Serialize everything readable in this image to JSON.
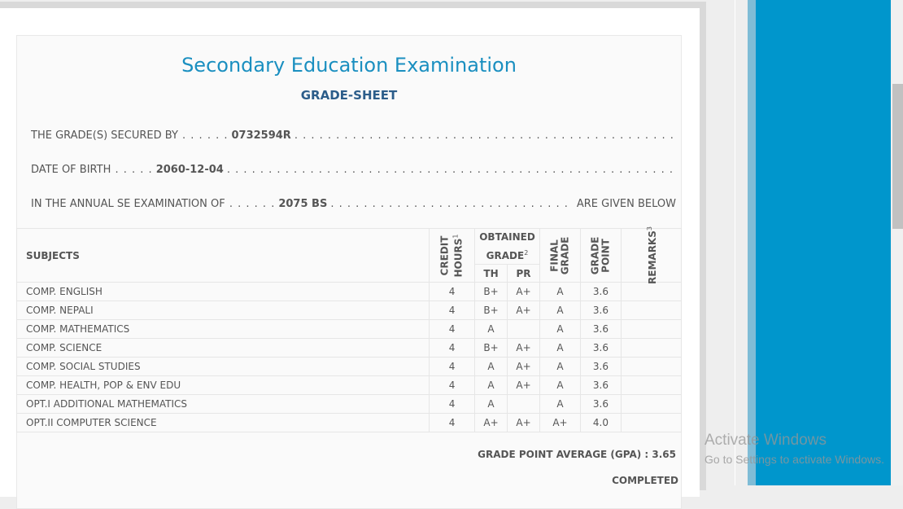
{
  "sheet": {
    "title": "Secondary Education Examination",
    "subtitle": "GRADE-SHEET",
    "secured_by_label": "THE GRADE(S) SECURED BY",
    "symbol_no": "0732594R",
    "dob_label": "DATE OF BIRTH",
    "dob": "2060-12-04",
    "exam_label": "IN THE ANNUAL SE EXAMINATION OF",
    "exam_year": "2075 BS",
    "given_below": "ARE GIVEN BELOW"
  },
  "table": {
    "headers": {
      "subjects": "SUBJECTS",
      "credit1": "CREDIT",
      "credit2": "HOURS",
      "credit_sup": "1",
      "obtained1": "OBTAINED",
      "obtained2": "GRADE",
      "obtained_sup": "2",
      "th": "TH",
      "pr": "PR",
      "final1": "FINAL",
      "final2": "GRADE",
      "gp1": "GRADE",
      "gp2": "POINT",
      "remarks": "REMARKS",
      "remarks_sup": "3"
    },
    "rows": [
      {
        "subject": "COMP. ENGLISH",
        "credit": "4",
        "th": "B+",
        "pr": "A+",
        "final": "A",
        "gp": "3.6",
        "remarks": ""
      },
      {
        "subject": "COMP. NEPALI",
        "credit": "4",
        "th": "B+",
        "pr": "A+",
        "final": "A",
        "gp": "3.6",
        "remarks": ""
      },
      {
        "subject": "COMP. MATHEMATICS",
        "credit": "4",
        "th": "A",
        "pr": "",
        "final": "A",
        "gp": "3.6",
        "remarks": ""
      },
      {
        "subject": "COMP. SCIENCE",
        "credit": "4",
        "th": "B+",
        "pr": "A+",
        "final": "A",
        "gp": "3.6",
        "remarks": ""
      },
      {
        "subject": "COMP. SOCIAL STUDIES",
        "credit": "4",
        "th": "A",
        "pr": "A+",
        "final": "A",
        "gp": "3.6",
        "remarks": ""
      },
      {
        "subject": "COMP. HEALTH, POP & ENV EDU",
        "credit": "4",
        "th": "A",
        "pr": "A+",
        "final": "A",
        "gp": "3.6",
        "remarks": ""
      },
      {
        "subject": "OPT.I ADDITIONAL MATHEMATICS",
        "credit": "4",
        "th": "A",
        "pr": "",
        "final": "A",
        "gp": "3.6",
        "remarks": ""
      },
      {
        "subject": "OPT.II COMPUTER SCIENCE",
        "credit": "4",
        "th": "A+",
        "pr": "A+",
        "final": "A+",
        "gp": "4.0",
        "remarks": ""
      }
    ]
  },
  "summary": {
    "gpa_label": "GRADE POINT AVERAGE (GPA) :",
    "gpa": "3.65",
    "status": "COMPLETED"
  },
  "watermark": {
    "title": "Activate Windows",
    "subtitle": "Go to Settings to activate Windows."
  },
  "colors": {
    "title": "#1a8fc0",
    "subtitle": "#2c5d8a",
    "side_panel": "#0096cc"
  }
}
